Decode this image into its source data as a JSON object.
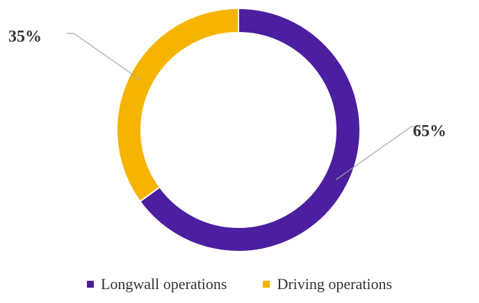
{
  "chart_data": {
    "type": "pie",
    "variant": "donut",
    "title": "",
    "slices": [
      {
        "label": "Longwall operations",
        "value": 65,
        "display": "65%",
        "color": "#4b1fa0"
      },
      {
        "label": "Driving operations",
        "value": 35,
        "display": "35%",
        "color": "#f5b400"
      }
    ],
    "legend_position": "bottom"
  }
}
